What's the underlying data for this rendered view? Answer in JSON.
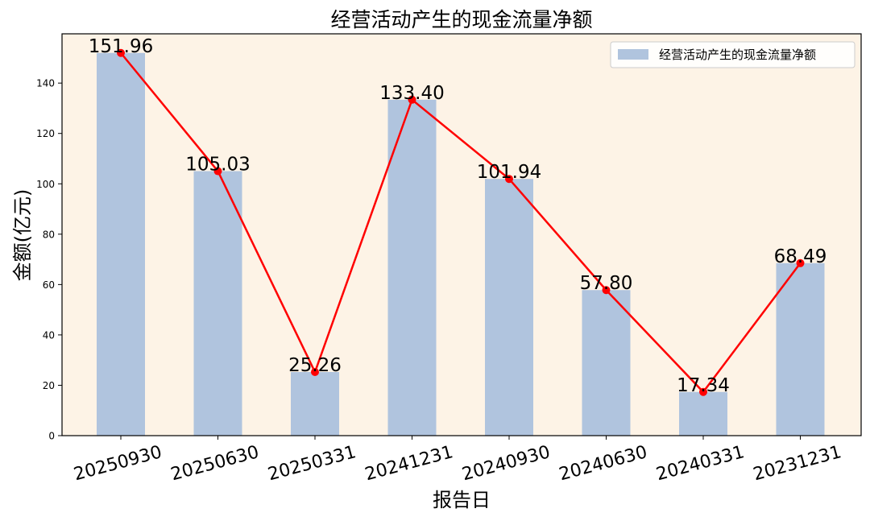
{
  "chart_data": {
    "type": "bar",
    "title": "经营活动产生的现金流量净额",
    "xlabel": "报告日",
    "ylabel": "金额(亿元)",
    "categories": [
      "20250930",
      "20250630",
      "20250331",
      "20241231",
      "20240930",
      "20240630",
      "20240331",
      "20231231"
    ],
    "series": [
      {
        "name": "经营活动产生的现金流量净额",
        "type": "bar",
        "values": [
          151.96,
          105.03,
          25.26,
          133.4,
          101.94,
          57.8,
          17.34,
          68.49
        ],
        "color": "#b0c4de"
      },
      {
        "type": "line",
        "values": [
          151.96,
          105.03,
          25.26,
          133.4,
          101.94,
          57.8,
          17.34,
          68.49
        ],
        "color": "#ff0000"
      }
    ],
    "data_labels": [
      "151.96",
      "105.03",
      "25.26",
      "133.40",
      "101.94",
      "57.80",
      "17.34",
      "68.49"
    ],
    "yticks": [
      0,
      20,
      40,
      60,
      80,
      100,
      120,
      140
    ],
    "ylim": [
      0,
      159.56
    ],
    "legend_position": "top-right",
    "grid": false,
    "plot_background": "#fdf3e6"
  }
}
